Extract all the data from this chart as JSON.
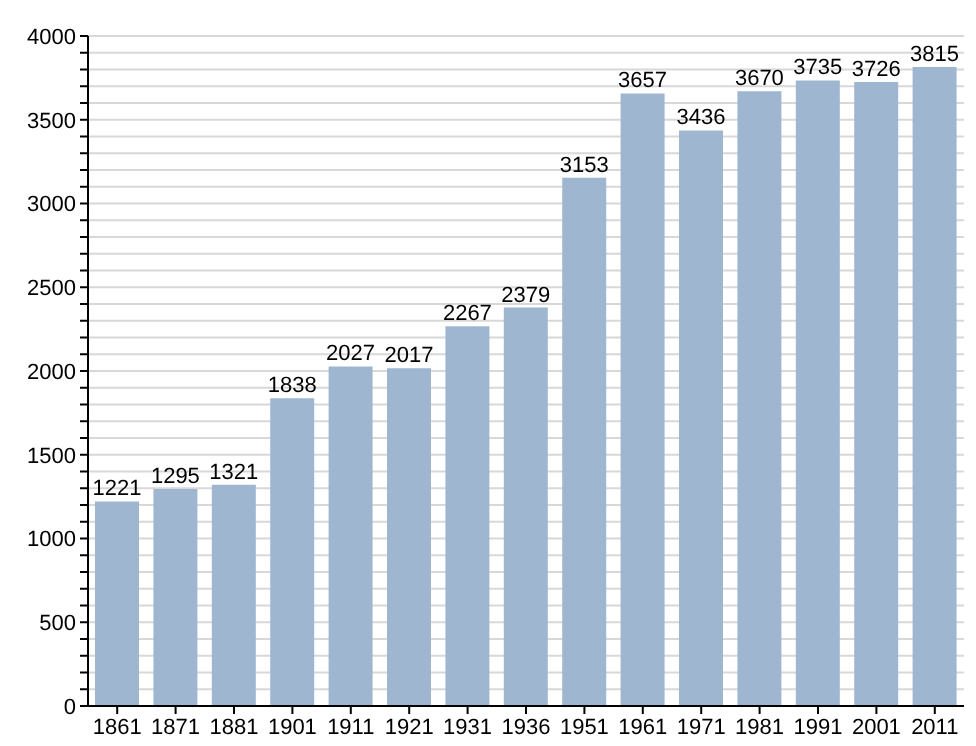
{
  "chart_data": {
    "type": "bar",
    "categories": [
      "1861",
      "1871",
      "1881",
      "1901",
      "1911",
      "1921",
      "1931",
      "1936",
      "1951",
      "1961",
      "1971",
      "1981",
      "1991",
      "2001",
      "2011"
    ],
    "values": [
      1221,
      1295,
      1321,
      1838,
      2027,
      2017,
      2267,
      2379,
      3153,
      3657,
      3436,
      3670,
      3735,
      3726,
      3815
    ],
    "color": "#9fb6d0",
    "data_labels": true,
    "grid": "y",
    "ylim": [
      0,
      4000
    ],
    "yticks": [
      0,
      {
        "value": 100,
        "label": null
      },
      {
        "value": 200,
        "label": null
      },
      {
        "value": 300,
        "label": null
      },
      {
        "value": 400,
        "label": null
      },
      500,
      {
        "value": 600,
        "label": null
      },
      {
        "value": 700,
        "label": null
      },
      {
        "value": 800,
        "label": null
      },
      {
        "value": 900,
        "label": null
      },
      1000,
      {
        "value": 1100,
        "label": null
      },
      {
        "value": 1200,
        "label": null
      },
      {
        "value": 1300,
        "label": null
      },
      {
        "value": 1400,
        "label": null
      },
      1500,
      {
        "value": 1600,
        "label": null
      },
      {
        "value": 1700,
        "label": null
      },
      {
        "value": 1800,
        "label": null
      },
      {
        "value": 1900,
        "label": null
      },
      2000,
      {
        "value": 2100,
        "label": null
      },
      {
        "value": 2200,
        "label": null
      },
      {
        "value": 2300,
        "label": null
      },
      {
        "value": 2400,
        "label": null
      },
      2500,
      {
        "value": 2600,
        "label": null
      },
      {
        "value": 2700,
        "label": null
      },
      {
        "value": 2800,
        "label": null
      },
      {
        "value": 2900,
        "label": null
      },
      3000,
      {
        "value": 3100,
        "label": null
      },
      {
        "value": 3200,
        "label": null
      },
      {
        "value": 3300,
        "label": null
      },
      {
        "value": 3400,
        "label": null
      },
      3500,
      {
        "value": 3600,
        "label": null
      },
      {
        "value": 3700,
        "label": null
      },
      {
        "value": 3800,
        "label": null
      },
      {
        "value": 3900,
        "label": null
      },
      4000
    ]
  }
}
